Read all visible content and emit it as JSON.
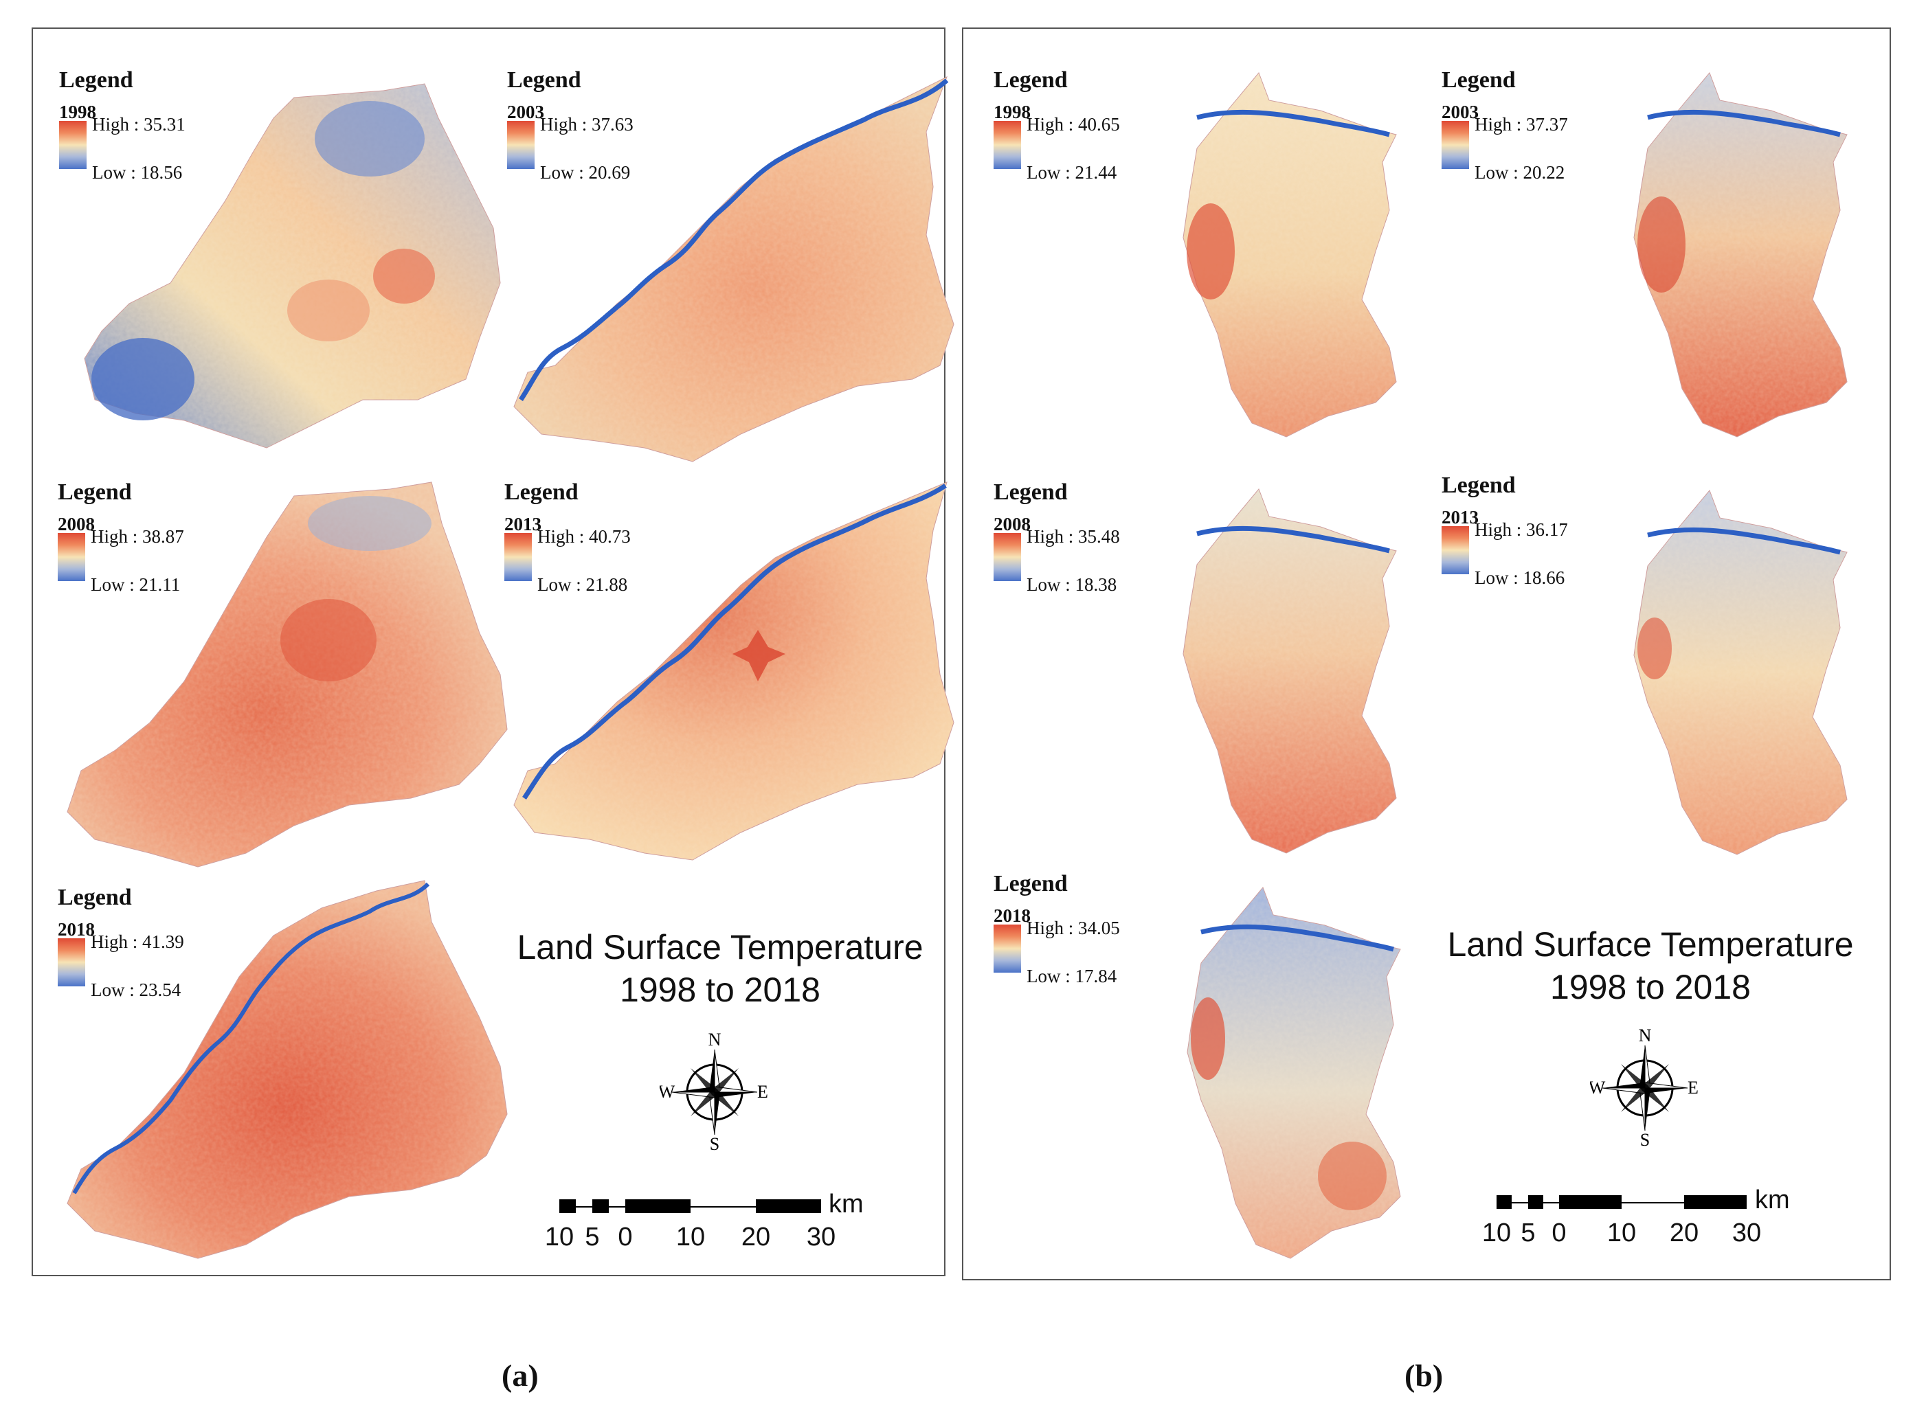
{
  "panels": {
    "a": {
      "caption": "(a)",
      "title_line1": "Land Surface Temperature",
      "title_line2": "1998 to 2018",
      "maps": [
        {
          "legend": "Legend",
          "year": "1998",
          "high": "High : 35.31",
          "low": "Low : 18.56"
        },
        {
          "legend": "Legend",
          "year": "2003",
          "high": "High : 37.63",
          "low": "Low : 20.69"
        },
        {
          "legend": "Legend",
          "year": "2008",
          "high": "High : 38.87",
          "low": "Low : 21.11"
        },
        {
          "legend": "Legend",
          "year": "2013",
          "high": "High : 40.73",
          "low": "Low : 21.88"
        },
        {
          "legend": "Legend",
          "year": "2018",
          "high": "High : 41.39",
          "low": "Low : 23.54"
        }
      ]
    },
    "b": {
      "caption": "(b)",
      "title_line1": "Land Surface Temperature",
      "title_line2": "1998 to 2018",
      "maps": [
        {
          "legend": "Legend",
          "year": "1998",
          "high": "High : 40.65",
          "low": "Low : 21.44"
        },
        {
          "legend": "Legend",
          "year": "2003",
          "high": "High : 37.37",
          "low": "Low : 20.22"
        },
        {
          "legend": "Legend",
          "year": "2008",
          "high": "High : 35.48",
          "low": "Low : 18.38"
        },
        {
          "legend": "Legend",
          "year": "2013",
          "high": "High : 36.17",
          "low": "Low : 18.66"
        },
        {
          "legend": "Legend",
          "year": "2018",
          "high": "High : 34.05",
          "low": "Low : 17.84"
        }
      ]
    }
  },
  "compass": {
    "n": "N",
    "s": "S",
    "e": "E",
    "w": "W"
  },
  "scale": {
    "unit": "km",
    "ticks": [
      "10",
      "5",
      "0",
      "10",
      "20",
      "30"
    ]
  },
  "colors": {
    "high": "#e04a35",
    "mid": "#f7e3b5",
    "low": "#4a72c8",
    "river": "#2c5fc4"
  }
}
